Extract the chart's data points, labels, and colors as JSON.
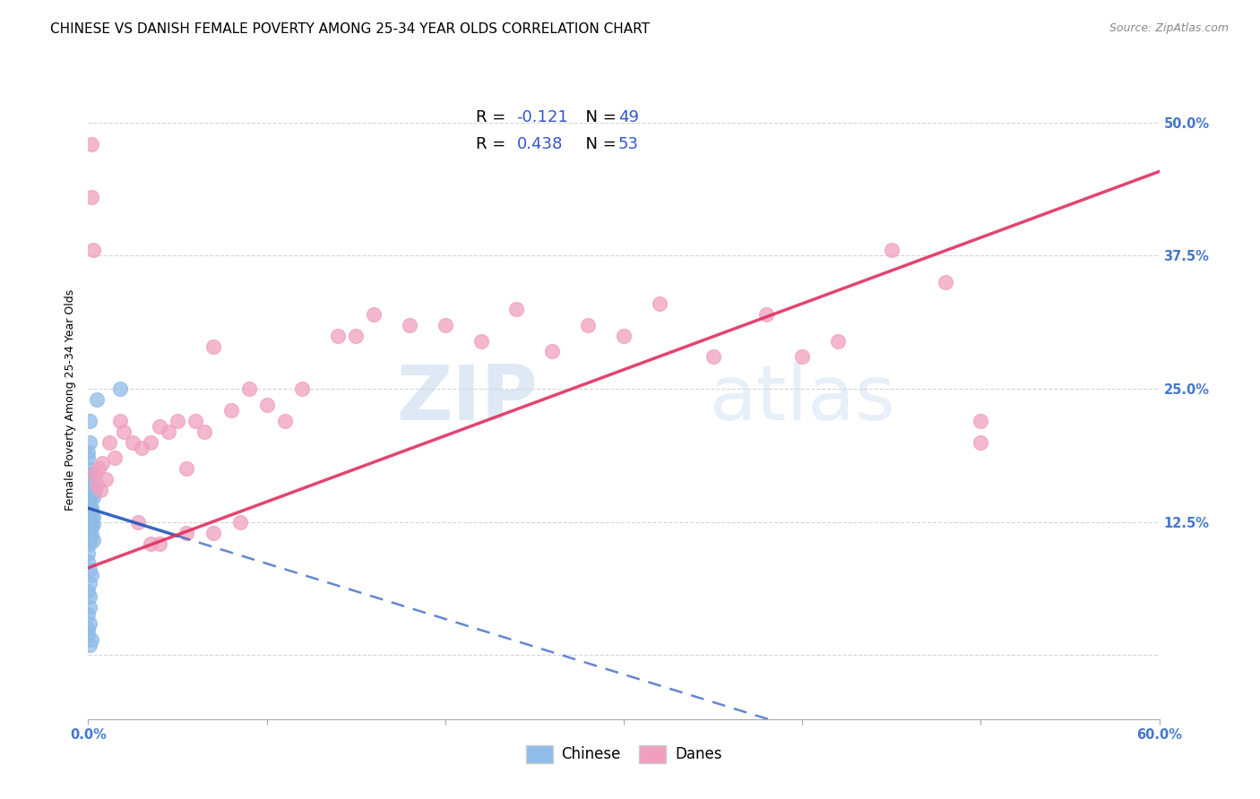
{
  "title": "CHINESE VS DANISH FEMALE POVERTY AMONG 25-34 YEAR OLDS CORRELATION CHART",
  "source": "Source: ZipAtlas.com",
  "ylabel": "Female Poverty Among 25-34 Year Olds",
  "xlim": [
    0,
    0.6
  ],
  "ylim": [
    -0.06,
    0.54
  ],
  "xtick_positions": [
    0.0,
    0.1,
    0.2,
    0.3,
    0.4,
    0.5,
    0.6
  ],
  "xticklabels": [
    "0.0%",
    "",
    "",
    "",
    "",
    "",
    "60.0%"
  ],
  "ytick_positions": [
    0.0,
    0.125,
    0.25,
    0.375,
    0.5
  ],
  "ytick_labels": [
    "",
    "12.5%",
    "25.0%",
    "37.5%",
    "50.0%"
  ],
  "watermark": "ZIPatlas",
  "chinese_color": "#90bce8",
  "danish_color": "#f0a0be",
  "chinese_line_color": "#2255bb",
  "danish_line_color": "#e03060",
  "chinese_line_solid": [
    0.0,
    0.1
  ],
  "chinese_line_dashed": [
    0.1,
    0.6
  ],
  "chinese_intercept": 0.138,
  "chinese_slope": -0.52,
  "danish_intercept": 0.082,
  "danish_slope": 0.62,
  "grid_color": "#cccccc",
  "background_color": "#ffffff",
  "title_fontsize": 11,
  "axis_label_fontsize": 9,
  "tick_fontsize": 10.5,
  "legend_fontsize": 13,
  "chinese_x": [
    0.005,
    0.018,
    0.001,
    0.001,
    0.0,
    0.0,
    0.0,
    0.002,
    0.001,
    0.003,
    0.002,
    0.004,
    0.001,
    0.002,
    0.003,
    0.0,
    0.001,
    0.0,
    0.001,
    0.002,
    0.001,
    0.001,
    0.002,
    0.003,
    0.001,
    0.002,
    0.001,
    0.003,
    0.002,
    0.001,
    0.0,
    0.002,
    0.001,
    0.003,
    0.001,
    0.0,
    0.0,
    0.001,
    0.002,
    0.001,
    0.0,
    0.001,
    0.001,
    0.0,
    0.001,
    0.0,
    0.0,
    0.002,
    0.001
  ],
  "chinese_y": [
    0.24,
    0.25,
    0.22,
    0.2,
    0.19,
    0.185,
    0.175,
    0.17,
    0.165,
    0.16,
    0.155,
    0.155,
    0.152,
    0.15,
    0.148,
    0.145,
    0.145,
    0.142,
    0.14,
    0.138,
    0.136,
    0.135,
    0.133,
    0.13,
    0.128,
    0.127,
    0.125,
    0.123,
    0.12,
    0.118,
    0.115,
    0.113,
    0.11,
    0.108,
    0.105,
    0.095,
    0.088,
    0.08,
    0.075,
    0.068,
    0.06,
    0.055,
    0.045,
    0.038,
    0.03,
    0.025,
    0.02,
    0.015,
    0.01
  ],
  "danish_x": [
    0.002,
    0.002,
    0.003,
    0.004,
    0.005,
    0.006,
    0.007,
    0.008,
    0.01,
    0.012,
    0.015,
    0.018,
    0.02,
    0.025,
    0.03,
    0.035,
    0.04,
    0.045,
    0.05,
    0.055,
    0.06,
    0.065,
    0.07,
    0.08,
    0.09,
    0.1,
    0.11,
    0.12,
    0.14,
    0.15,
    0.16,
    0.18,
    0.2,
    0.22,
    0.24,
    0.26,
    0.28,
    0.3,
    0.32,
    0.35,
    0.38,
    0.4,
    0.42,
    0.45,
    0.48,
    0.5,
    0.035,
    0.028,
    0.04,
    0.055,
    0.07,
    0.085,
    0.5
  ],
  "danish_y": [
    0.48,
    0.43,
    0.38,
    0.17,
    0.16,
    0.175,
    0.155,
    0.18,
    0.165,
    0.2,
    0.185,
    0.22,
    0.21,
    0.2,
    0.195,
    0.2,
    0.215,
    0.21,
    0.22,
    0.175,
    0.22,
    0.21,
    0.29,
    0.23,
    0.25,
    0.235,
    0.22,
    0.25,
    0.3,
    0.3,
    0.32,
    0.31,
    0.31,
    0.295,
    0.325,
    0.285,
    0.31,
    0.3,
    0.33,
    0.28,
    0.32,
    0.28,
    0.295,
    0.38,
    0.35,
    0.22,
    0.105,
    0.125,
    0.105,
    0.115,
    0.115,
    0.125,
    0.2
  ]
}
